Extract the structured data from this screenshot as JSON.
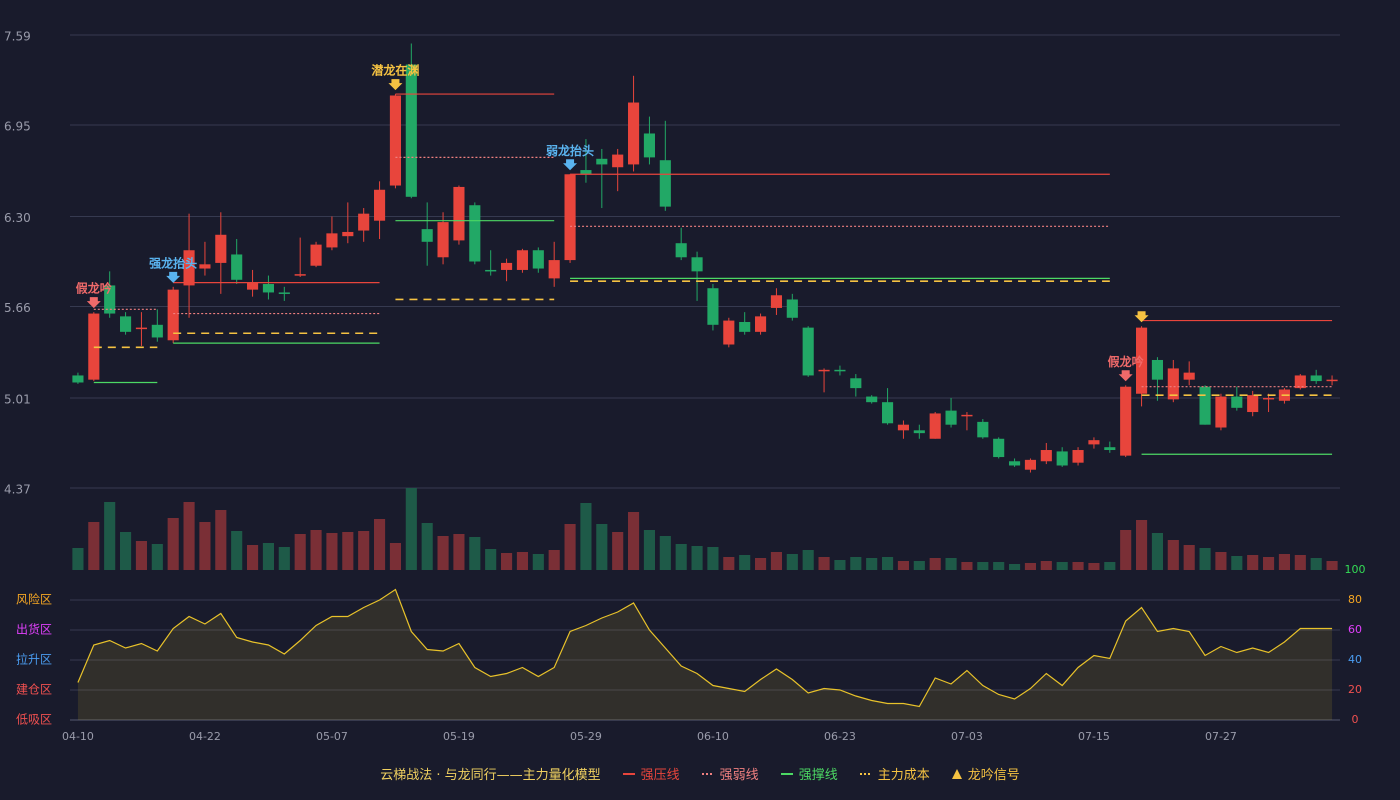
{
  "chart_data": {
    "type": "candlestick",
    "categories": [
      "04-10",
      null,
      null,
      null,
      null,
      null,
      null,
      null,
      "04-22",
      null,
      null,
      null,
      null,
      null,
      null,
      null,
      "05-07",
      null,
      null,
      null,
      null,
      null,
      null,
      null,
      "05-19",
      null,
      null,
      null,
      null,
      null,
      null,
      null,
      "05-29",
      null,
      null,
      null,
      null,
      null,
      null,
      null,
      "06-10",
      null,
      null,
      null,
      null,
      null,
      null,
      null,
      "06-23",
      null,
      null,
      null,
      null,
      null,
      null,
      null,
      "07-03",
      null,
      null,
      null,
      null,
      null,
      null,
      null,
      "07-15",
      null,
      null,
      null,
      null,
      null,
      null,
      null,
      "07-27",
      null,
      null,
      null,
      null,
      null,
      null,
      null
    ],
    "open": [
      5.17,
      5.14,
      5.81,
      5.59,
      5.5,
      5.53,
      5.42,
      5.81,
      5.93,
      5.97,
      6.03,
      5.78,
      5.82,
      5.76,
      5.88,
      5.95,
      6.08,
      6.16,
      6.2,
      6.27,
      6.52,
      7.38,
      6.21,
      6.01,
      6.13,
      6.38,
      5.92,
      5.92,
      5.92,
      6.06,
      5.86,
      5.99,
      6.63,
      6.71,
      6.65,
      6.67,
      6.89,
      6.7,
      6.11,
      6.01,
      5.79,
      5.39,
      5.55,
      5.48,
      5.65,
      5.71,
      5.51,
      5.2,
      5.21,
      5.15,
      5.02,
      4.98,
      4.78,
      4.78,
      4.72,
      4.92,
      4.88,
      4.84,
      4.72,
      4.56,
      4.5,
      4.56,
      4.63,
      4.55,
      4.68,
      4.66,
      4.6,
      5.04,
      5.28,
      5.0,
      5.14,
      5.09,
      4.8,
      5.02,
      4.91,
      5.0,
      4.99,
      5.08,
      5.17,
      5.13
    ],
    "close": [
      5.12,
      5.61,
      5.61,
      5.48,
      5.51,
      5.44,
      5.78,
      6.06,
      5.96,
      6.17,
      5.85,
      5.83,
      5.76,
      5.75,
      5.89,
      6.1,
      6.18,
      6.19,
      6.32,
      6.49,
      7.16,
      6.44,
      6.12,
      6.26,
      6.51,
      5.98,
      5.91,
      5.97,
      6.06,
      5.93,
      5.99,
      6.6,
      6.6,
      6.67,
      6.74,
      7.11,
      6.72,
      6.37,
      6.01,
      5.91,
      5.53,
      5.56,
      5.48,
      5.59,
      5.74,
      5.58,
      5.17,
      5.21,
      5.2,
      5.08,
      4.98,
      4.83,
      4.82,
      4.76,
      4.9,
      4.82,
      4.89,
      4.73,
      4.59,
      4.53,
      4.57,
      4.64,
      4.53,
      4.64,
      4.71,
      4.64,
      5.09,
      5.51,
      5.14,
      5.22,
      5.19,
      4.82,
      5.02,
      4.94,
      5.03,
      5.01,
      5.07,
      5.17,
      5.13,
      5.14
    ],
    "high": [
      5.19,
      5.62,
      5.91,
      5.62,
      5.62,
      5.64,
      5.8,
      6.32,
      6.12,
      6.33,
      6.14,
      5.92,
      5.88,
      5.8,
      6.15,
      6.12,
      6.3,
      6.4,
      6.36,
      6.55,
      7.17,
      7.53,
      6.4,
      6.33,
      6.52,
      6.4,
      6.06,
      6.0,
      6.07,
      6.08,
      6.12,
      6.6,
      6.85,
      6.78,
      6.78,
      7.3,
      7.01,
      6.98,
      6.22,
      6.05,
      5.82,
      5.58,
      5.62,
      5.61,
      5.79,
      5.75,
      5.52,
      5.22,
      5.24,
      5.18,
      5.03,
      5.08,
      4.85,
      4.82,
      4.91,
      5.01,
      4.91,
      4.86,
      4.73,
      4.58,
      4.58,
      4.69,
      4.66,
      4.66,
      4.73,
      4.7,
      5.1,
      5.52,
      5.3,
      5.28,
      5.27,
      5.1,
      5.04,
      5.09,
      5.06,
      5.04,
      5.08,
      5.18,
      5.21,
      5.17
    ],
    "low": [
      5.11,
      5.13,
      5.58,
      5.46,
      5.38,
      5.41,
      5.4,
      5.58,
      5.88,
      5.75,
      5.82,
      5.73,
      5.71,
      5.7,
      5.87,
      5.94,
      6.06,
      6.11,
      6.12,
      6.14,
      6.5,
      6.43,
      5.95,
      5.96,
      6.1,
      5.96,
      5.88,
      5.84,
      5.9,
      5.9,
      5.8,
      5.97,
      6.54,
      6.36,
      6.48,
      6.62,
      6.67,
      6.34,
      5.99,
      5.7,
      5.49,
      5.37,
      5.46,
      5.46,
      5.6,
      5.56,
      5.16,
      5.05,
      5.17,
      5.02,
      4.97,
      4.82,
      4.72,
      4.72,
      4.72,
      4.8,
      4.78,
      4.72,
      4.58,
      4.52,
      4.48,
      4.54,
      4.52,
      4.53,
      4.65,
      4.62,
      4.59,
      4.95,
      4.99,
      4.98,
      5.1,
      4.82,
      4.78,
      4.92,
      4.88,
      4.91,
      4.97,
      5.07,
      5.11,
      5.1
    ],
    "up_color": "#e8453c",
    "down_color": "#22a866",
    "ylim": [
      4.37,
      7.59
    ],
    "yticks": [
      7.59,
      6.95,
      {
        "value": 6.3,
        "label": "6.30"
      },
      5.66,
      5.01,
      4.37
    ],
    "grid": true,
    "volume": {
      "values": [
        22,
        48,
        68,
        38,
        29,
        26,
        52,
        68,
        48,
        60,
        39,
        25,
        27,
        23,
        36,
        40,
        37,
        38,
        39,
        51,
        27,
        82,
        47,
        34,
        36,
        33,
        21,
        17,
        18,
        16,
        20,
        46,
        67,
        46,
        38,
        58,
        40,
        34,
        26,
        24,
        23,
        13,
        15,
        12,
        18,
        16,
        20,
        13,
        10,
        13,
        12,
        13,
        9,
        9,
        12,
        12,
        8,
        8,
        8,
        6,
        7,
        9,
        8,
        8,
        7,
        8,
        40,
        50,
        37,
        30,
        25,
        22,
        18,
        14,
        15,
        13,
        16,
        15,
        12,
        9
      ],
      "up_color": "#7a2f36",
      "down_color": "#1e5a48"
    },
    "indicator": {
      "values": [
        25,
        50,
        53,
        48,
        51,
        46,
        61,
        69,
        64,
        71,
        55,
        52,
        50,
        44,
        53,
        63,
        69,
        69,
        75,
        80,
        87,
        59,
        47,
        46,
        51,
        35,
        29,
        31,
        35,
        29,
        35,
        59,
        63,
        68,
        72,
        78,
        60,
        48,
        36,
        31,
        23,
        21,
        19,
        27,
        34,
        27,
        18,
        21,
        20,
        16,
        13,
        11,
        11,
        9,
        28,
        24,
        33,
        23,
        17,
        14,
        21,
        31,
        23,
        35,
        43,
        41,
        66,
        75,
        59,
        61,
        59,
        43,
        49,
        45,
        48,
        45,
        52,
        61,
        61,
        61
      ],
      "color": "#e8c22a",
      "ylim": [
        0,
        100
      ],
      "yticks": [
        0,
        20,
        40,
        60,
        80,
        100
      ],
      "ytick_colors": [
        "#f05050",
        "#f05050",
        "#4a9cf0",
        "#e040fb",
        "#f5a623",
        "#33dd55"
      ],
      "zones": [
        {
          "label": "风险区",
          "value": 80,
          "color": "#f5a623"
        },
        {
          "label": "出货区",
          "value": 60,
          "color": "#e040fb"
        },
        {
          "label": "拉升区",
          "value": 40,
          "color": "#4a9cf0"
        },
        {
          "label": "建仓区",
          "value": 20,
          "color": "#f05050"
        },
        {
          "label": "低吸区",
          "value": 0,
          "color": "#f05050"
        }
      ]
    },
    "levels": [
      {
        "name": "强压线",
        "color": "#e8453c",
        "style": "solid",
        "segments": [
          {
            "from": 6,
            "to": 19,
            "value": 5.83
          },
          {
            "from": 20,
            "to": 30,
            "value": 7.17
          },
          {
            "from": 31,
            "to": 65,
            "value": 6.6
          },
          {
            "from": 67,
            "to": 79,
            "value": 5.56
          }
        ]
      },
      {
        "name": "强弱线",
        "color": "#f08080",
        "style": "dotted",
        "segments": [
          {
            "from": 1,
            "to": 5,
            "value": 5.64
          },
          {
            "from": 6,
            "to": 19,
            "value": 5.61
          },
          {
            "from": 20,
            "to": 30,
            "value": 6.72
          },
          {
            "from": 31,
            "to": 65,
            "value": 6.23
          },
          {
            "from": 67,
            "to": 79,
            "value": 5.09
          }
        ]
      },
      {
        "name": "强撑线",
        "color": "#4cd964",
        "style": "solid",
        "segments": [
          {
            "from": 1,
            "to": 5,
            "value": 5.12
          },
          {
            "from": 6,
            "to": 19,
            "value": 5.4
          },
          {
            "from": 20,
            "to": 30,
            "value": 6.27
          },
          {
            "from": 31,
            "to": 65,
            "value": 5.86
          },
          {
            "from": 67,
            "to": 79,
            "value": 4.61
          }
        ]
      },
      {
        "name": "主力成本",
        "color": "#f5c242",
        "style": "dashed",
        "segments": [
          {
            "from": 1,
            "to": 5,
            "value": 5.37
          },
          {
            "from": 6,
            "to": 19,
            "value": 5.47
          },
          {
            "from": 20,
            "to": 30,
            "value": 5.71
          },
          {
            "from": 31,
            "to": 65,
            "value": 5.84
          },
          {
            "from": 67,
            "to": 79,
            "value": 5.03
          }
        ]
      }
    ],
    "signals": {
      "name": "龙吟信号",
      "color": "#f5c242",
      "items": [
        {
          "index": 1,
          "label": "假龙吟",
          "color": "#f06a6a"
        },
        {
          "index": 6,
          "label": "强龙抬头",
          "color": "#5ab4f0"
        },
        {
          "index": 20,
          "label": "潜龙在渊",
          "color": "#f5c242"
        },
        {
          "index": 31,
          "label": "弱龙抬头",
          "color": "#5ab4f0"
        },
        {
          "index": 66,
          "label": "假龙吟",
          "color": "#f06a6a"
        },
        {
          "index": 67
        }
      ]
    },
    "legend_title": "云梯战法 · 与龙同行——主力量化模型"
  }
}
